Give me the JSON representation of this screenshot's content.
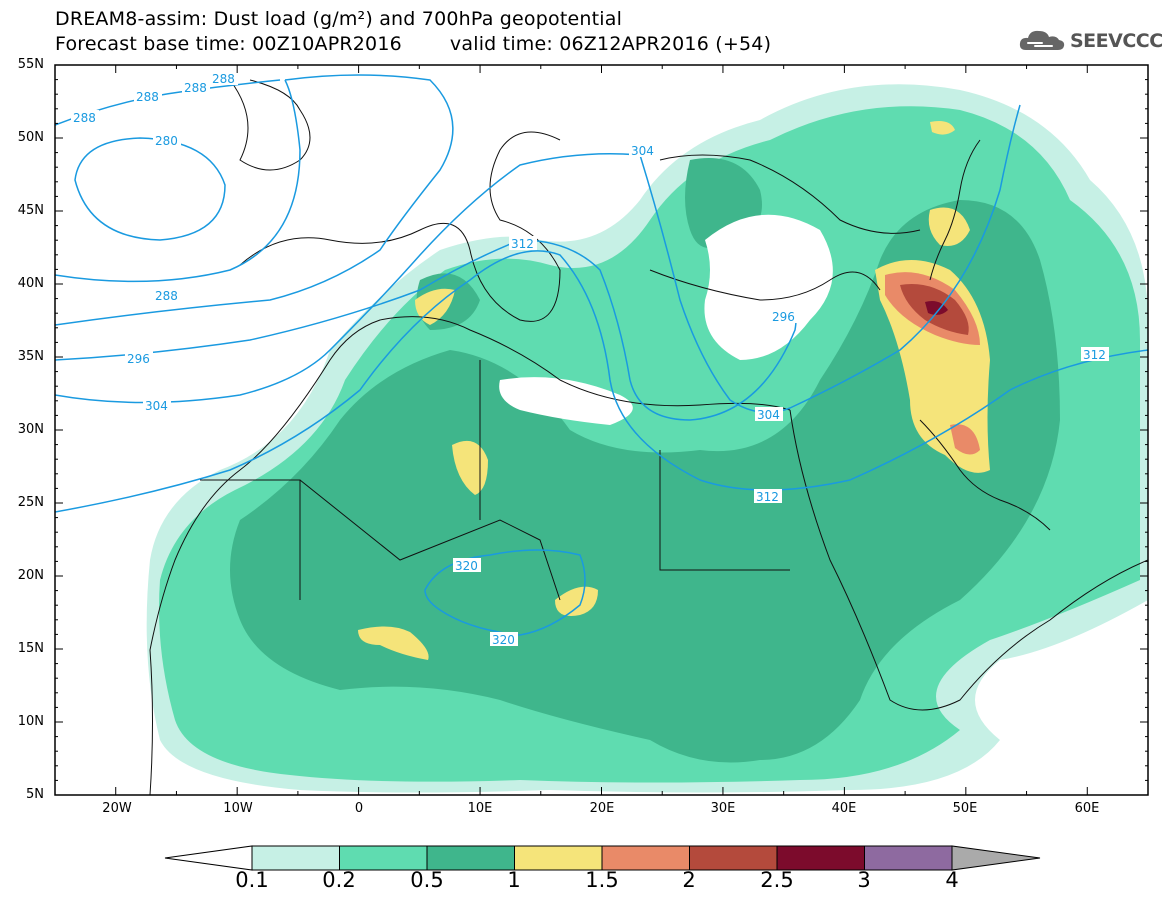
{
  "title": {
    "line1": "DREAM8-assim: Dust load (g/m²) and 700hPa geopotential",
    "base_time": "Forecast base time: 00Z10APR2016",
    "valid_time": "valid time: 06Z12APR2016 (+54)"
  },
  "logo": {
    "text": "SEEVCCC",
    "icon": "cloud-icon"
  },
  "axes": {
    "lat_labels": [
      "55N",
      "50N",
      "45N",
      "40N",
      "35N",
      "30N",
      "25N",
      "20N",
      "15N",
      "10N",
      "5N"
    ],
    "lon_labels": [
      "20W",
      "10W",
      "0",
      "10E",
      "20E",
      "30E",
      "40E",
      "50E",
      "60E"
    ],
    "lat_range": [
      5,
      55
    ],
    "lon_range": [
      -25,
      65
    ]
  },
  "colorbar": {
    "labels": [
      "0.1",
      "0.2",
      "0.5",
      "1",
      "1.5",
      "2",
      "2.5",
      "3",
      "4"
    ],
    "colors": [
      "#c6f0e5",
      "#5fdcb0",
      "#3fb68c",
      "#f5e47a",
      "#e98a68",
      "#b44a3c",
      "#7c0b2c",
      "#8e6aa0"
    ],
    "under_color": "#ffffff",
    "over_color": "#aaaaaa"
  },
  "contours": {
    "color": "#1a9ae0",
    "labels": [
      "288",
      "288",
      "288",
      "288",
      "280",
      "288",
      "296",
      "304",
      "304",
      "312",
      "296",
      "312",
      "304",
      "312",
      "320",
      "320"
    ]
  }
}
